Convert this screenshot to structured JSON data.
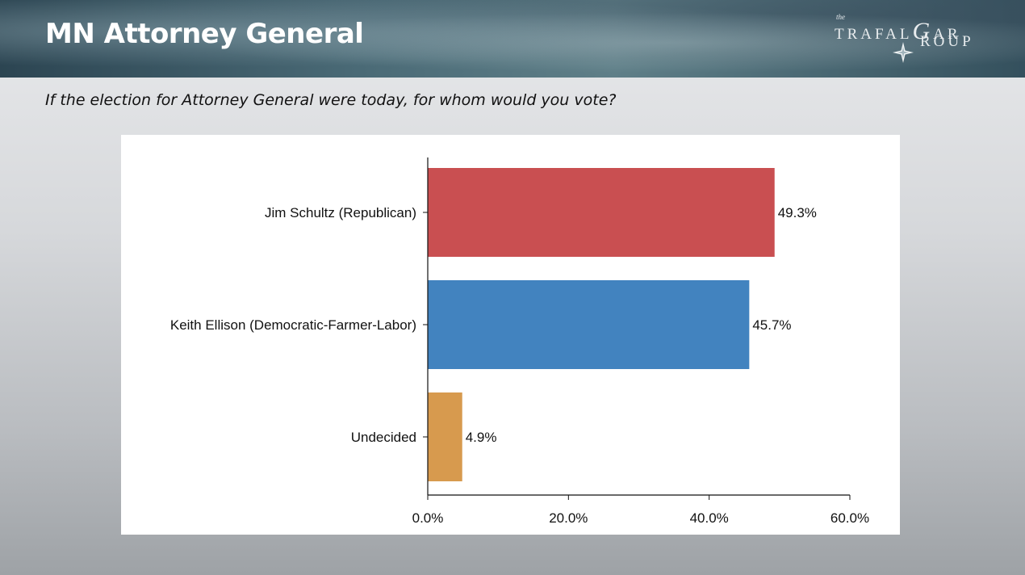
{
  "header": {
    "title": "MN Attorney General",
    "logo": {
      "the": "the",
      "line1": "TRAFAL",
      "letter_g": "G",
      "line1_end": "AR",
      "line2": "ROUP"
    }
  },
  "question": "If the election for Attorney General were today, for whom would you vote?",
  "chart_data": {
    "type": "bar",
    "orientation": "horizontal",
    "categories": [
      "Jim Schultz (Republican)",
      "Keith Ellison (Democratic-Farmer-Labor)",
      "Undecided"
    ],
    "values": [
      49.3,
      45.7,
      4.9
    ],
    "value_labels": [
      "49.3%",
      "45.7%",
      "4.9%"
    ],
    "colors": [
      "#c94f51",
      "#4283bf",
      "#d79a4e"
    ],
    "xlim": [
      0,
      60
    ],
    "xticks": [
      0,
      20,
      40,
      60
    ],
    "xtick_labels": [
      "0.0%",
      "20.0%",
      "40.0%",
      "60.0%"
    ],
    "grid": false,
    "legend": "none"
  }
}
